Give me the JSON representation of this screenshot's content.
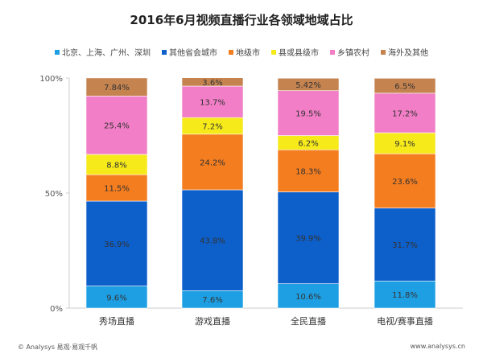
{
  "chart_data": {
    "type": "bar",
    "stacked": true,
    "title": "2016年6月视频直播行业各领域地域占比",
    "categories": [
      "秀场直播",
      "游戏直播",
      "全民直播",
      "电视/赛事直播"
    ],
    "yticks": [
      "0%",
      "50%",
      "100%"
    ],
    "ylim": [
      0,
      100
    ],
    "legend_position": "top",
    "series": [
      {
        "name": "北京、上海、广州、深圳",
        "color": "#1e9fe3",
        "values": [
          9.6,
          7.6,
          10.6,
          11.8
        ]
      },
      {
        "name": "其他省会城市",
        "color": "#0d5fca",
        "values": [
          36.9,
          43.8,
          39.9,
          31.7
        ]
      },
      {
        "name": "地级市",
        "color": "#f47d20",
        "values": [
          11.5,
          24.2,
          18.3,
          23.6
        ]
      },
      {
        "name": "县或县级市",
        "color": "#f6ea1a",
        "values": [
          8.8,
          7.2,
          6.2,
          9.1
        ]
      },
      {
        "name": "乡镇农村",
        "color": "#f17ec6",
        "values": [
          25.4,
          13.7,
          19.5,
          17.2
        ]
      },
      {
        "name": "海外及其他",
        "color": "#c5834f",
        "values": [
          7.84,
          3.6,
          5.42,
          6.5
        ]
      }
    ]
  },
  "footer": {
    "left": "© Analysys 易观·易观千帆",
    "right": "www.analysys.cn"
  }
}
